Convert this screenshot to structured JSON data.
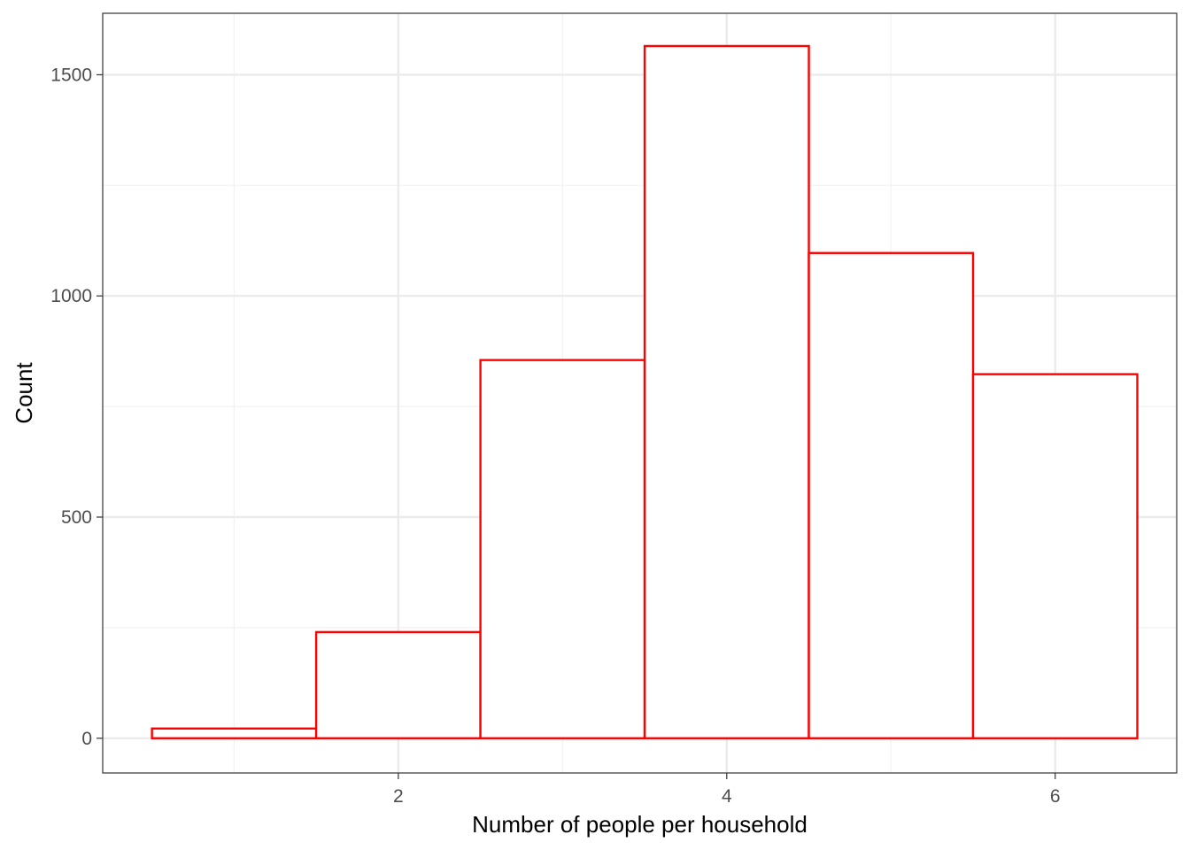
{
  "chart_data": {
    "type": "bar",
    "subtype": "histogram",
    "x_bins": [
      {
        "from": 0.5,
        "to": 1.5,
        "count": 22
      },
      {
        "from": 1.5,
        "to": 2.5,
        "count": 240
      },
      {
        "from": 2.5,
        "to": 3.5,
        "count": 855
      },
      {
        "from": 3.5,
        "to": 4.5,
        "count": 1565
      },
      {
        "from": 4.5,
        "to": 5.5,
        "count": 1097
      },
      {
        "from": 5.5,
        "to": 6.5,
        "count": 823
      }
    ],
    "xlabel": "Number of people per household",
    "ylabel": "Count",
    "xlim": [
      0.2,
      6.74
    ],
    "ylim": [
      -78.5,
      1639
    ],
    "x_ticks": [
      2,
      4,
      6
    ],
    "x_tick_labels": [
      "2",
      "4",
      "6"
    ],
    "x_minor_ticks": [
      1,
      3,
      5
    ],
    "y_ticks": [
      0,
      500,
      1000,
      1500
    ],
    "y_tick_labels": [
      "0",
      "500",
      "1000",
      "1500"
    ],
    "y_minor_ticks": [
      250,
      750,
      1250
    ],
    "grid": true,
    "legend": "none",
    "colors": {
      "bar_outline": "#ff0000",
      "bar_fill": "#ffffff",
      "grid_major": "#ebebeb",
      "grid_minor": "#f2f2f2",
      "panel_border": "#333333",
      "tick_text": "#4d4d4d",
      "title_text": "#000000"
    }
  }
}
